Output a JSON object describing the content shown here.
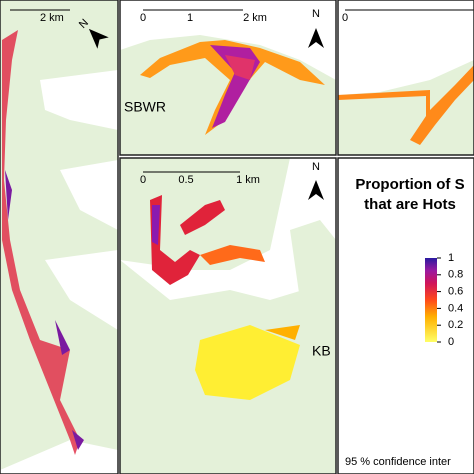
{
  "panels": {
    "left": {
      "scale_label": "2 km",
      "north": "N"
    },
    "top_middle": {
      "scale_labels": [
        "0",
        "1",
        "2 km"
      ],
      "north": "N",
      "site": "SBWR"
    },
    "top_right": {
      "scale_labels": [
        "0"
      ]
    },
    "bottom_middle": {
      "scale_labels": [
        "0",
        "0.5",
        "1 km"
      ],
      "north": "N",
      "site": "KB"
    }
  },
  "legend": {
    "title_lines": [
      "Proportion of S",
      "that are Hots"
    ],
    "range": [
      0,
      1
    ],
    "ticks": [
      1,
      0.8,
      0.6,
      0.4,
      0.2,
      0
    ],
    "footer": "95 % confidence inter"
  }
}
